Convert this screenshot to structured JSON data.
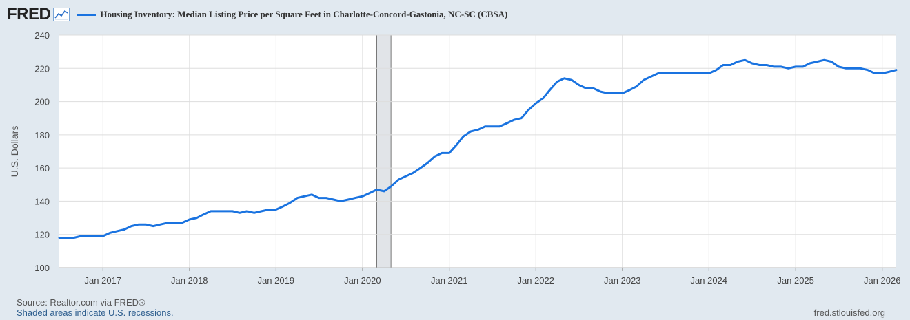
{
  "header": {
    "logo": "FRED",
    "title": "Housing Inventory: Median Listing Price per Square Feet in Charlotte-Concord-Gastonia, NC-SC (CBSA)"
  },
  "footer": {
    "source": "Source: Realtor.com via FRED®",
    "recession_note": "Shaded areas indicate U.S. recessions.",
    "url": "fred.stlouisfed.org"
  },
  "colors": {
    "line": "#1a73e0",
    "recession": "#e1e4e8",
    "grid": "#dddddd",
    "background": "#e1e9f0"
  },
  "chart_data": {
    "type": "line",
    "title": "Housing Inventory: Median Listing Price per Square Feet in Charlotte-Concord-Gastonia, NC-SC (CBSA)",
    "xlabel": "",
    "ylabel": "U.S. Dollars",
    "ylim": [
      100,
      240
    ],
    "yticks": [
      100,
      120,
      140,
      160,
      180,
      200,
      220,
      240
    ],
    "xlim": [
      "2016-07-01",
      "2026-03-01"
    ],
    "xticks": [
      {
        "date": "2017-01-01",
        "label": "Jan 2017"
      },
      {
        "date": "2018-01-01",
        "label": "Jan 2018"
      },
      {
        "date": "2019-01-01",
        "label": "Jan 2019"
      },
      {
        "date": "2020-01-01",
        "label": "Jan 2020"
      },
      {
        "date": "2021-01-01",
        "label": "Jan 2021"
      },
      {
        "date": "2022-01-01",
        "label": "Jan 2022"
      },
      {
        "date": "2023-01-01",
        "label": "Jan 2023"
      },
      {
        "date": "2024-01-01",
        "label": "Jan 2024"
      },
      {
        "date": "2025-01-01",
        "label": "Jan 2025"
      },
      {
        "date": "2026-01-01",
        "label": "Jan 2026"
      }
    ],
    "grid": true,
    "legend": "top-left",
    "recessions": [
      {
        "start": "2020-03-01",
        "end": "2020-04-30"
      }
    ],
    "series": [
      {
        "name": "Housing Inventory: Median Listing Price per Square Feet in Charlotte-Concord-Gastonia, NC-SC (CBSA)",
        "points": [
          [
            "2016-07-01",
            118
          ],
          [
            "2016-08-01",
            118
          ],
          [
            "2016-09-01",
            118
          ],
          [
            "2016-10-01",
            119
          ],
          [
            "2016-11-01",
            119
          ],
          [
            "2016-12-01",
            119
          ],
          [
            "2017-01-01",
            119
          ],
          [
            "2017-02-01",
            121
          ],
          [
            "2017-03-01",
            122
          ],
          [
            "2017-04-01",
            123
          ],
          [
            "2017-05-01",
            125
          ],
          [
            "2017-06-01",
            126
          ],
          [
            "2017-07-01",
            126
          ],
          [
            "2017-08-01",
            125
          ],
          [
            "2017-09-01",
            126
          ],
          [
            "2017-10-01",
            127
          ],
          [
            "2017-11-01",
            127
          ],
          [
            "2017-12-01",
            127
          ],
          [
            "2018-01-01",
            129
          ],
          [
            "2018-02-01",
            130
          ],
          [
            "2018-03-01",
            132
          ],
          [
            "2018-04-01",
            134
          ],
          [
            "2018-05-01",
            134
          ],
          [
            "2018-06-01",
            134
          ],
          [
            "2018-07-01",
            134
          ],
          [
            "2018-08-01",
            133
          ],
          [
            "2018-09-01",
            134
          ],
          [
            "2018-10-01",
            133
          ],
          [
            "2018-11-01",
            134
          ],
          [
            "2018-12-01",
            135
          ],
          [
            "2019-01-01",
            135
          ],
          [
            "2019-02-01",
            137
          ],
          [
            "2019-03-01",
            139
          ],
          [
            "2019-04-01",
            142
          ],
          [
            "2019-05-01",
            143
          ],
          [
            "2019-06-01",
            144
          ],
          [
            "2019-07-01",
            142
          ],
          [
            "2019-08-01",
            142
          ],
          [
            "2019-09-01",
            141
          ],
          [
            "2019-10-01",
            140
          ],
          [
            "2019-11-01",
            141
          ],
          [
            "2019-12-01",
            142
          ],
          [
            "2020-01-01",
            143
          ],
          [
            "2020-02-01",
            145
          ],
          [
            "2020-03-01",
            147
          ],
          [
            "2020-04-01",
            146
          ],
          [
            "2020-05-01",
            149
          ],
          [
            "2020-06-01",
            153
          ],
          [
            "2020-07-01",
            155
          ],
          [
            "2020-08-01",
            157
          ],
          [
            "2020-09-01",
            160
          ],
          [
            "2020-10-01",
            163
          ],
          [
            "2020-11-01",
            167
          ],
          [
            "2020-12-01",
            169
          ],
          [
            "2021-01-01",
            169
          ],
          [
            "2021-02-01",
            174
          ],
          [
            "2021-03-01",
            179
          ],
          [
            "2021-04-01",
            182
          ],
          [
            "2021-05-01",
            183
          ],
          [
            "2021-06-01",
            185
          ],
          [
            "2021-07-01",
            185
          ],
          [
            "2021-08-01",
            185
          ],
          [
            "2021-09-01",
            187
          ],
          [
            "2021-10-01",
            189
          ],
          [
            "2021-11-01",
            190
          ],
          [
            "2021-12-01",
            195
          ],
          [
            "2022-01-01",
            199
          ],
          [
            "2022-02-01",
            202
          ],
          [
            "2022-03-01",
            207
          ],
          [
            "2022-04-01",
            212
          ],
          [
            "2022-05-01",
            214
          ],
          [
            "2022-06-01",
            213
          ],
          [
            "2022-07-01",
            210
          ],
          [
            "2022-08-01",
            208
          ],
          [
            "2022-09-01",
            208
          ],
          [
            "2022-10-01",
            206
          ],
          [
            "2022-11-01",
            205
          ],
          [
            "2022-12-01",
            205
          ],
          [
            "2023-01-01",
            205
          ],
          [
            "2023-02-01",
            207
          ],
          [
            "2023-03-01",
            209
          ],
          [
            "2023-04-01",
            213
          ],
          [
            "2023-05-01",
            215
          ],
          [
            "2023-06-01",
            217
          ],
          [
            "2023-07-01",
            217
          ],
          [
            "2023-08-01",
            217
          ],
          [
            "2023-09-01",
            217
          ],
          [
            "2023-10-01",
            217
          ],
          [
            "2023-11-01",
            217
          ],
          [
            "2023-12-01",
            217
          ],
          [
            "2024-01-01",
            217
          ],
          [
            "2024-02-01",
            219
          ],
          [
            "2024-03-01",
            222
          ],
          [
            "2024-04-01",
            222
          ],
          [
            "2024-05-01",
            224
          ],
          [
            "2024-06-01",
            225
          ],
          [
            "2024-07-01",
            223
          ],
          [
            "2024-08-01",
            222
          ],
          [
            "2024-09-01",
            222
          ],
          [
            "2024-10-01",
            221
          ],
          [
            "2024-11-01",
            221
          ],
          [
            "2024-12-01",
            220
          ],
          [
            "2025-01-01",
            221
          ],
          [
            "2025-02-01",
            221
          ],
          [
            "2025-03-01",
            223
          ],
          [
            "2025-04-01",
            224
          ],
          [
            "2025-05-01",
            225
          ],
          [
            "2025-06-01",
            224
          ],
          [
            "2025-07-01",
            221
          ],
          [
            "2025-08-01",
            220
          ],
          [
            "2025-09-01",
            220
          ],
          [
            "2025-10-01",
            220
          ],
          [
            "2025-11-01",
            219
          ],
          [
            "2025-12-01",
            217
          ],
          [
            "2026-01-01",
            217
          ],
          [
            "2026-02-01",
            218
          ],
          [
            "2026-03-01",
            219
          ]
        ]
      }
    ]
  }
}
